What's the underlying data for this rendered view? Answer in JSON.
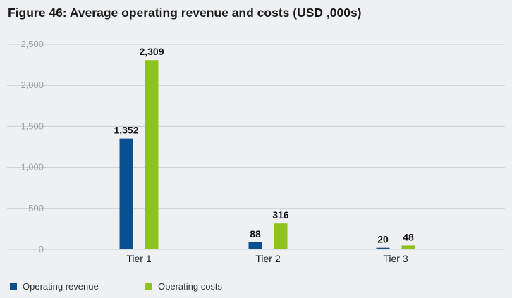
{
  "title": "Figure 46: Average operating revenue and costs (USD ,000s)",
  "chart_data": {
    "type": "bar",
    "categories": [
      "Tier 1",
      "Tier 2",
      "Tier 3"
    ],
    "series": [
      {
        "name": "Operating revenue",
        "values": [
          1352,
          88,
          20
        ],
        "labels": [
          "1,352",
          "88",
          "20"
        ],
        "color": "#0a4f8f"
      },
      {
        "name": "Operating costs",
        "values": [
          2309,
          316,
          48
        ],
        "labels": [
          "2,309",
          "316",
          "48"
        ],
        "color": "#8dc21f"
      }
    ],
    "ylim": [
      0,
      2500
    ],
    "yticks": [
      0,
      500,
      1000,
      1500,
      2000,
      2500
    ],
    "ytick_labels": [
      "0",
      "500",
      "1,000",
      "1,500",
      "2,000",
      "2,500"
    ],
    "grid": true,
    "legend_position": "bottom-left"
  }
}
